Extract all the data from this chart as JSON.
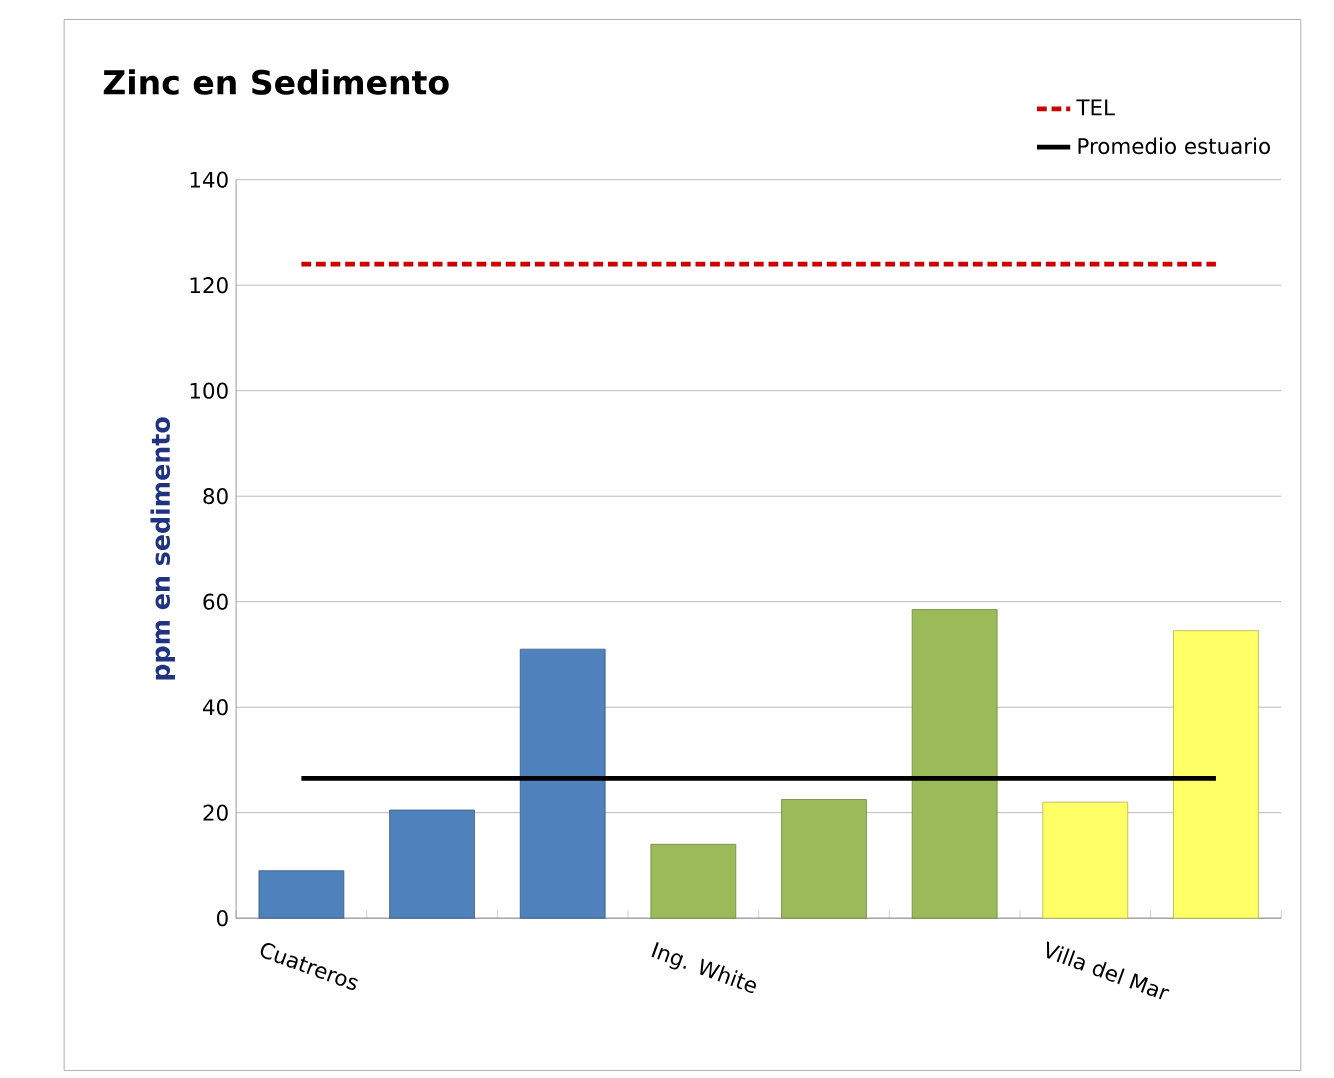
{
  "chart_data": {
    "type": "bar",
    "title": "Zinc en Sedimento",
    "ylabel": "ppm en sedimento",
    "categories": [
      "Cuatreros",
      null,
      null,
      "Ing. White",
      null,
      null,
      "Villa del Mar",
      null
    ],
    "series": [
      {
        "colors": [
          "#4f81bd",
          "#4f81bd",
          "#4f81bd",
          "#9bbb59",
          "#9bbb59",
          "#9bbb59",
          "#ffff66",
          "#ffff66"
        ],
        "values": [
          9,
          20.5,
          51,
          14,
          22.5,
          58.5,
          22,
          54.5
        ]
      },
      {
        "type": "line",
        "name": "TEL",
        "color": "#cc0000",
        "line_style": "dashed",
        "values": [
          124,
          124,
          124,
          124,
          124,
          124,
          124,
          124
        ]
      },
      {
        "type": "line",
        "name": "Promedio estuario",
        "color": "#000000",
        "line_style": "solid",
        "values": [
          26.5,
          26.5,
          26.5,
          26.5,
          26.5,
          26.5,
          26.5,
          26.5
        ]
      }
    ],
    "ylim": [
      0,
      140
    ],
    "yticks": [
      0,
      20,
      40,
      60,
      80,
      100,
      120,
      140
    ],
    "grid": "y",
    "legend": "top right"
  }
}
